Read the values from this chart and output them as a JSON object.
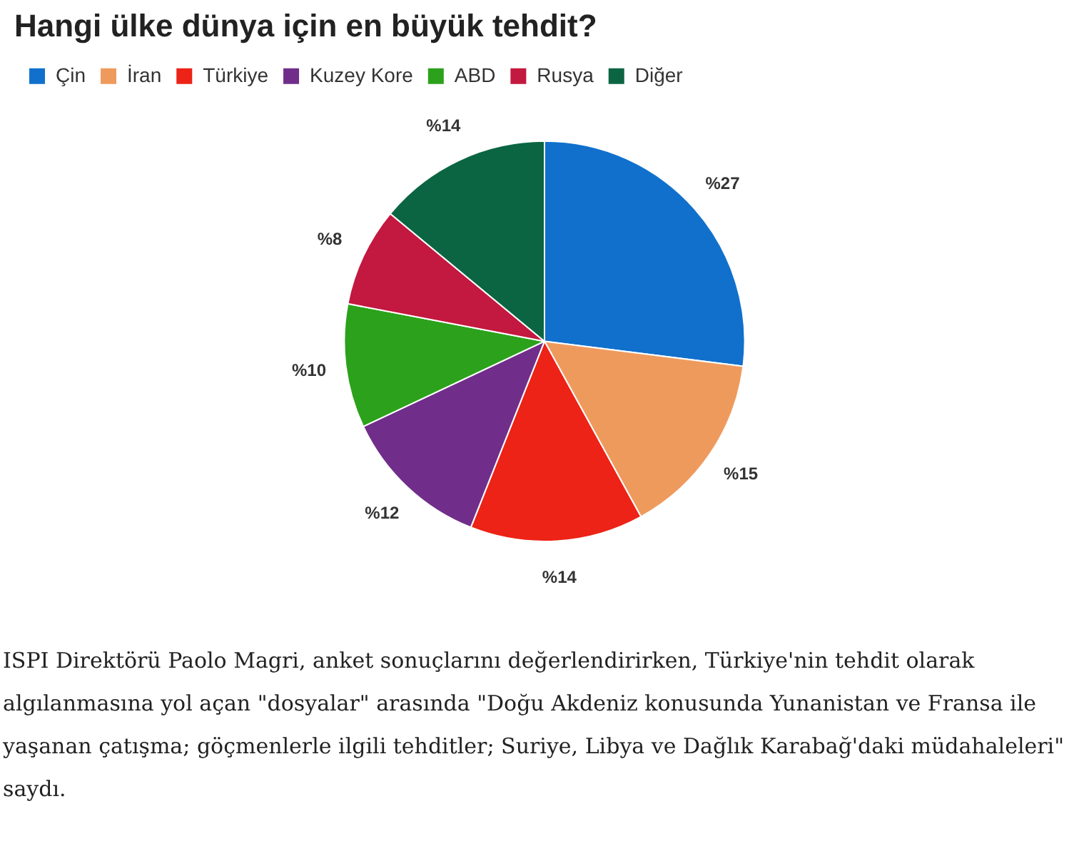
{
  "chart_data": {
    "type": "pie",
    "title": "Hangi ülke dünya için en büyük tehdit?",
    "categories": [
      "Çin",
      "İran",
      "Türkiye",
      "Kuzey Kore",
      "ABD",
      "Rusya",
      "Diğer"
    ],
    "values": [
      27,
      15,
      14,
      12,
      10,
      8,
      14
    ],
    "colors": [
      "#1170cc",
      "#ef9a5d",
      "#ec2316",
      "#702e8a",
      "#2ca11b",
      "#c3183f",
      "#0b6542"
    ],
    "value_labels": [
      "%27",
      "%15",
      "%14",
      "%12",
      "%10",
      "%8",
      "%14"
    ],
    "legend": "top left",
    "annotations": [
      "ISPI Direktörü Paolo Magri, anket sonuçlarını değerlendirirken, Türkiye'nin tehdit olarak algılanmasına yol açan \"dosyalar\" arasında \"Doğu Akdeniz konusunda Yunanistan ve Fransa ile yaşanan çatışma; göçmenlerle ilgili tehditler; Suriye, Libya ve Dağlık Karabağ'daki müdahaleleri\" saydı."
    ]
  }
}
